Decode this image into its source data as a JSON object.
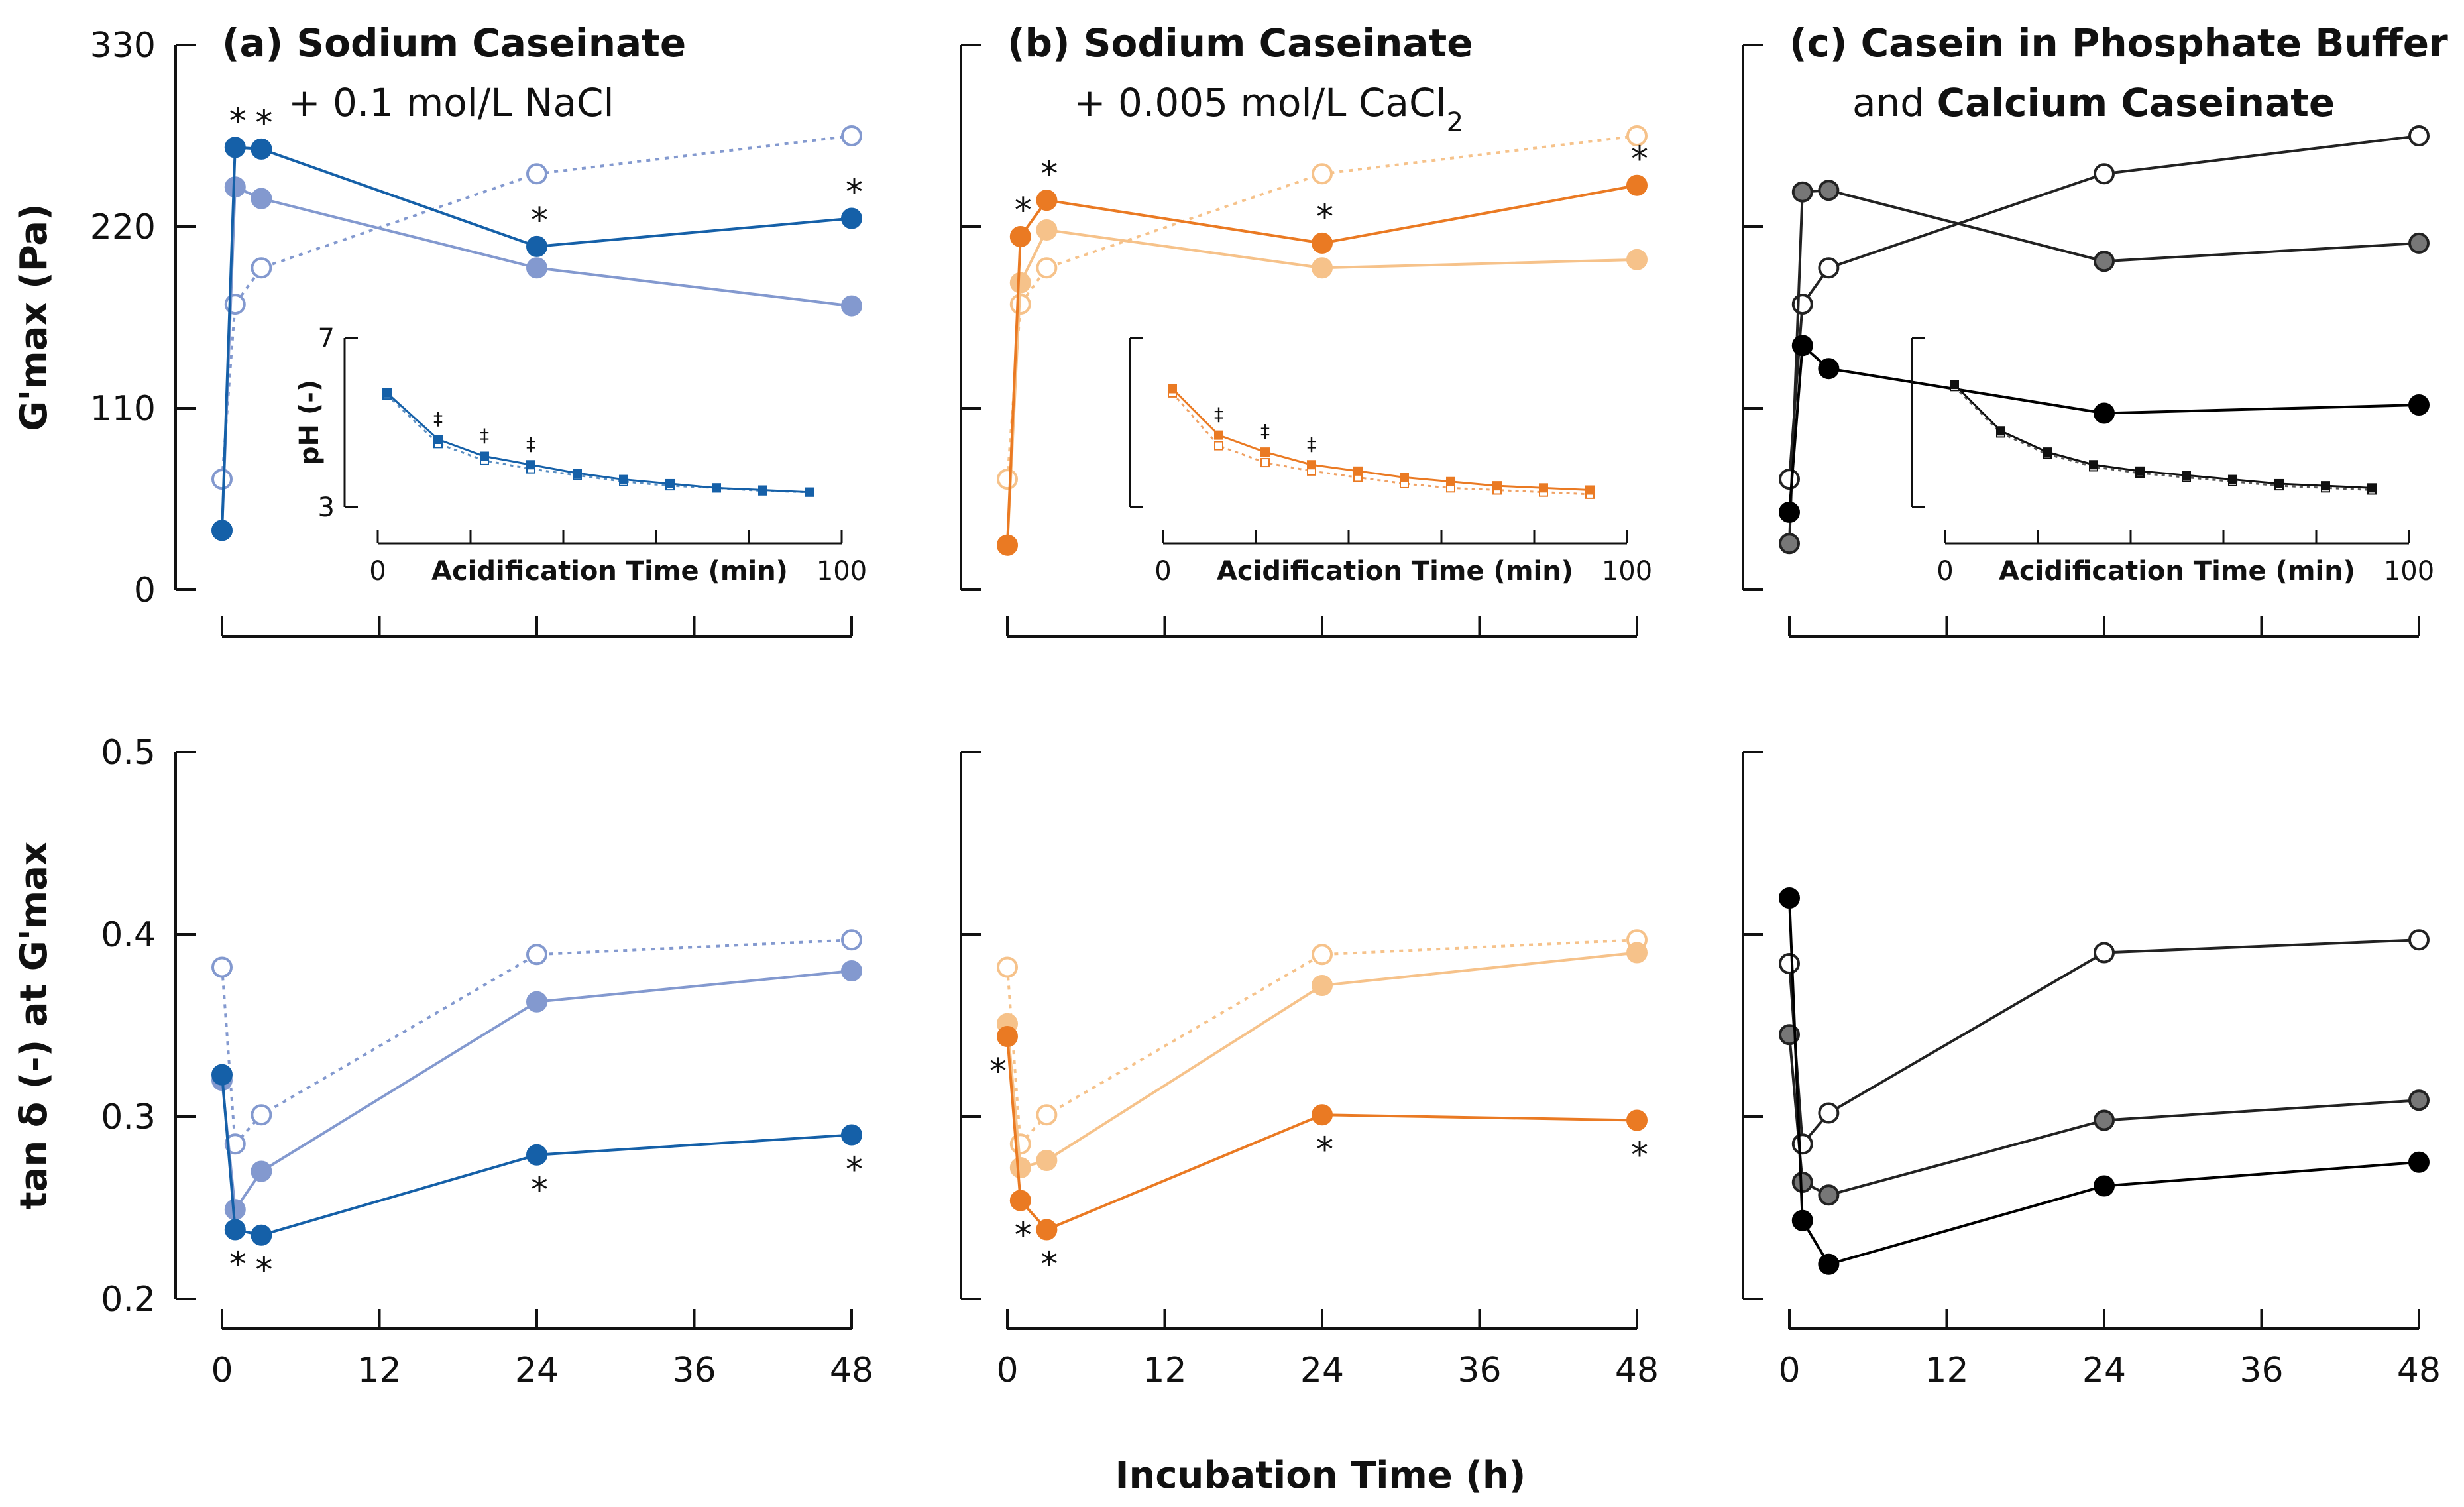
{
  "figure": {
    "x_axis_title": "Incubation Time (h)",
    "y_top_title": "G'max (Pa)",
    "y_bottom_title": "tan δ (-) at G'max"
  },
  "chart_data": [
    {
      "type": "line",
      "panel": "a",
      "row": "top",
      "title_bold": "(a) Sodium Caseinate",
      "subtitle": "+ 0.1 mol/L NaCl",
      "ylabel": "G'max (Pa)",
      "xlabel": "Incubation Time (h)",
      "xlim": [
        0,
        48
      ],
      "ylim": [
        0,
        330
      ],
      "xticks": [
        0,
        12,
        24,
        36,
        48
      ],
      "yticks": [
        0,
        110,
        220,
        330
      ],
      "series": [
        {
          "name": "dark filled",
          "color": "#1560a8",
          "fill": "#1560a8",
          "dash": false,
          "x": [
            0,
            1,
            3,
            24,
            48
          ],
          "y": [
            36,
            268,
            267,
            208,
            225
          ]
        },
        {
          "name": "light filled",
          "color": "#8399cf",
          "fill": "#8399cf",
          "dash": false,
          "x": [
            0,
            1,
            3,
            24,
            48
          ],
          "y": [
            36,
            244,
            237,
            195,
            172
          ]
        },
        {
          "name": "open (reference)",
          "color": "#8399cf",
          "fill": "#ffffff",
          "dash": true,
          "x": [
            0,
            1,
            3,
            24,
            48
          ],
          "y": [
            67,
            173,
            195,
            252,
            275
          ]
        }
      ],
      "annotations": [
        {
          "text": "*",
          "x": 1,
          "y": 268,
          "pos": "above"
        },
        {
          "text": "*",
          "x": 3,
          "y": 267,
          "pos": "above"
        },
        {
          "text": "*",
          "x": 24,
          "y": 208,
          "pos": "above"
        },
        {
          "text": "*",
          "x": 48,
          "y": 225,
          "pos": "above"
        }
      ],
      "inset": {
        "xlabel": "Acidification Time (min)",
        "ylabel": "pH (-)",
        "xlim": [
          0,
          100
        ],
        "ylim": [
          3,
          7
        ],
        "xtick_labels": [
          "0",
          "100"
        ],
        "ytick_labels": [
          "3",
          "7"
        ],
        "show_y_labels": true,
        "color": "#1560a8",
        "x": [
          2,
          13,
          23,
          33,
          43,
          53,
          63,
          73,
          83,
          93
        ],
        "y_filled": [
          5.7,
          4.6,
          4.2,
          4.0,
          3.8,
          3.65,
          3.55,
          3.45,
          3.4,
          3.35
        ],
        "y_open": [
          5.65,
          4.5,
          4.1,
          3.9,
          3.75,
          3.6,
          3.5,
          3.45,
          3.38,
          3.35
        ],
        "markers": [
          "‡",
          "‡",
          "‡"
        ]
      }
    },
    {
      "type": "line",
      "panel": "b",
      "row": "top",
      "title_bold": "(b) Sodium Caseinate",
      "subtitle": "+ 0.005 mol/L CaCl",
      "subtitle_sub": "2",
      "ylabel": "G'max (Pa)",
      "xlabel": "Incubation Time (h)",
      "xlim": [
        0,
        48
      ],
      "ylim": [
        0,
        330
      ],
      "xticks": [
        0,
        12,
        24,
        36,
        48
      ],
      "yticks": [
        0,
        110,
        220,
        330
      ],
      "series": [
        {
          "name": "dark filled",
          "color": "#ea7a23",
          "fill": "#ea7a23",
          "dash": false,
          "x": [
            0,
            1,
            3,
            24,
            48
          ],
          "y": [
            27,
            214,
            236,
            210,
            245
          ]
        },
        {
          "name": "light filled",
          "color": "#f6c28a",
          "fill": "#f6c28a",
          "dash": false,
          "x": [
            0,
            1,
            3,
            24,
            48
          ],
          "y": [
            27,
            186,
            218,
            195,
            200
          ]
        },
        {
          "name": "open (reference)",
          "color": "#f6c28a",
          "fill": "#ffffff",
          "dash": true,
          "x": [
            0,
            1,
            3,
            24,
            48
          ],
          "y": [
            67,
            173,
            195,
            252,
            275
          ]
        }
      ],
      "annotations": [
        {
          "text": "*",
          "x": 1,
          "y": 214,
          "pos": "above"
        },
        {
          "text": "*",
          "x": 3,
          "y": 236,
          "pos": "above"
        },
        {
          "text": "*",
          "x": 24,
          "y": 210,
          "pos": "above"
        },
        {
          "text": "*",
          "x": 48,
          "y": 245,
          "pos": "above"
        }
      ],
      "inset": {
        "xlabel": "Acidification Time (min)",
        "ylabel": "",
        "xlim": [
          0,
          100
        ],
        "ylim": [
          3,
          7
        ],
        "xtick_labels": [
          "0",
          "100"
        ],
        "ytick_labels": [],
        "show_y_labels": false,
        "color": "#ea7a23",
        "x": [
          2,
          12,
          22,
          32,
          42,
          52,
          62,
          72,
          82,
          92
        ],
        "y_filled": [
          5.8,
          4.7,
          4.3,
          4.0,
          3.85,
          3.7,
          3.6,
          3.5,
          3.45,
          3.4
        ],
        "y_open": [
          5.7,
          4.45,
          4.05,
          3.85,
          3.7,
          3.55,
          3.45,
          3.4,
          3.35,
          3.3
        ],
        "markers": [
          "‡",
          "‡",
          "‡"
        ]
      }
    },
    {
      "type": "line",
      "panel": "c",
      "row": "top",
      "title_bold": "(c) Casein in Phosphate Buffer",
      "subtitle_pre": "and ",
      "subtitle_bold": "Calcium Caseinate",
      "ylabel": "G'max (Pa)",
      "xlabel": "Incubation Time (h)",
      "xlim": [
        0,
        48
      ],
      "ylim": [
        0,
        330
      ],
      "xticks": [
        0,
        12,
        24,
        36,
        48
      ],
      "yticks": [
        0,
        110,
        220,
        330
      ],
      "series": [
        {
          "name": "black filled",
          "color": "#000000",
          "fill": "#000000",
          "dash": false,
          "x": [
            0,
            1,
            3,
            24,
            48
          ],
          "y": [
            47,
            148,
            134,
            107,
            112
          ]
        },
        {
          "name": "grey filled",
          "color": "#222222",
          "fill": "#777777",
          "dash": false,
          "x": [
            0,
            1,
            3,
            24,
            48
          ],
          "y": [
            28,
            241,
            242,
            199,
            210
          ]
        },
        {
          "name": "open",
          "color": "#222222",
          "fill": "#ffffff",
          "dash": false,
          "x": [
            0,
            1,
            3,
            24,
            48
          ],
          "y": [
            67,
            173,
            195,
            252,
            275
          ]
        }
      ],
      "annotations": [],
      "inset": {
        "xlabel": "Acidification Time (min)",
        "ylabel": "",
        "xlim": [
          0,
          100
        ],
        "ylim": [
          3,
          7
        ],
        "xtick_labels": [
          "0",
          "100"
        ],
        "ytick_labels": [],
        "show_y_labels": false,
        "color": "#111111",
        "x": [
          2,
          12,
          22,
          32,
          42,
          52,
          62,
          72,
          82,
          92
        ],
        "y_filled": [
          5.9,
          4.8,
          4.3,
          4.0,
          3.85,
          3.75,
          3.65,
          3.55,
          3.5,
          3.45
        ],
        "y_open": [
          5.85,
          4.75,
          4.25,
          3.95,
          3.8,
          3.7,
          3.6,
          3.5,
          3.45,
          3.4
        ],
        "markers": []
      }
    },
    {
      "type": "line",
      "panel": "a",
      "row": "bottom",
      "ylabel": "tan δ (-) at G'max",
      "xlabel": "Incubation Time (h)",
      "xlim": [
        0,
        48
      ],
      "ylim": [
        0.2,
        0.5
      ],
      "xticks": [
        0,
        12,
        24,
        36,
        48
      ],
      "yticks": [
        0.2,
        0.3,
        0.4,
        0.5
      ],
      "series": [
        {
          "name": "dark filled",
          "color": "#1560a8",
          "fill": "#1560a8",
          "dash": false,
          "x": [
            0,
            1,
            3,
            24,
            48
          ],
          "y": [
            0.323,
            0.238,
            0.235,
            0.279,
            0.29
          ]
        },
        {
          "name": "light filled",
          "color": "#8399cf",
          "fill": "#8399cf",
          "dash": false,
          "x": [
            0,
            1,
            3,
            24,
            48
          ],
          "y": [
            0.32,
            0.249,
            0.27,
            0.363,
            0.38
          ]
        },
        {
          "name": "open (reference)",
          "color": "#8399cf",
          "fill": "#ffffff",
          "dash": true,
          "x": [
            0,
            1,
            3,
            24,
            48
          ],
          "y": [
            0.382,
            0.285,
            0.301,
            0.389,
            0.397
          ]
        }
      ],
      "annotations": [
        {
          "text": "*",
          "x": 1,
          "y": 0.238,
          "pos": "below"
        },
        {
          "text": "*",
          "x": 3,
          "y": 0.235,
          "pos": "below"
        },
        {
          "text": "*",
          "x": 24,
          "y": 0.279,
          "pos": "below"
        },
        {
          "text": "*",
          "x": 48,
          "y": 0.29,
          "pos": "below"
        }
      ]
    },
    {
      "type": "line",
      "panel": "b",
      "row": "bottom",
      "ylabel": "tan δ (-) at G'max",
      "xlabel": "Incubation Time (h)",
      "xlim": [
        0,
        48
      ],
      "ylim": [
        0.2,
        0.5
      ],
      "xticks": [
        0,
        12,
        24,
        36,
        48
      ],
      "yticks": [
        0.2,
        0.3,
        0.4,
        0.5
      ],
      "series": [
        {
          "name": "dark filled",
          "color": "#ea7a23",
          "fill": "#ea7a23",
          "dash": false,
          "x": [
            0,
            1,
            3,
            24,
            48
          ],
          "y": [
            0.344,
            0.254,
            0.238,
            0.301,
            0.298
          ]
        },
        {
          "name": "light filled",
          "color": "#f6c28a",
          "fill": "#f6c28a",
          "dash": false,
          "x": [
            0,
            1,
            3,
            24,
            48
          ],
          "y": [
            0.351,
            0.272,
            0.276,
            0.372,
            0.39
          ]
        },
        {
          "name": "open (reference)",
          "color": "#f6c28a",
          "fill": "#ffffff",
          "dash": true,
          "x": [
            0,
            1,
            3,
            24,
            48
          ],
          "y": [
            0.382,
            0.285,
            0.301,
            0.389,
            0.397
          ]
        }
      ],
      "annotations": [
        {
          "text": "*",
          "x": 0,
          "y": 0.344,
          "pos": "below"
        },
        {
          "text": "*",
          "x": 1,
          "y": 0.254,
          "pos": "below"
        },
        {
          "text": "*",
          "x": 3,
          "y": 0.238,
          "pos": "below"
        },
        {
          "text": "*",
          "x": 24,
          "y": 0.301,
          "pos": "below"
        },
        {
          "text": "*",
          "x": 48,
          "y": 0.298,
          "pos": "below"
        }
      ]
    },
    {
      "type": "line",
      "panel": "c",
      "row": "bottom",
      "ylabel": "tan δ (-) at G'max",
      "xlabel": "Incubation Time (h)",
      "xlim": [
        0,
        48
      ],
      "ylim": [
        0.2,
        0.5
      ],
      "xticks": [
        0,
        12,
        24,
        36,
        48
      ],
      "yticks": [
        0.2,
        0.3,
        0.4,
        0.5
      ],
      "series": [
        {
          "name": "black filled",
          "color": "#000000",
          "fill": "#000000",
          "dash": false,
          "x": [
            0,
            1,
            3,
            24,
            48
          ],
          "y": [
            0.42,
            0.243,
            0.219,
            0.262,
            0.275
          ]
        },
        {
          "name": "grey filled",
          "color": "#222222",
          "fill": "#777777",
          "dash": false,
          "x": [
            0,
            1,
            3,
            24,
            48
          ],
          "y": [
            0.345,
            0.264,
            0.257,
            0.298,
            0.309
          ]
        },
        {
          "name": "open",
          "color": "#222222",
          "fill": "#ffffff",
          "dash": false,
          "x": [
            0,
            1,
            3,
            24,
            48
          ],
          "y": [
            0.384,
            0.285,
            0.302,
            0.39,
            0.397
          ]
        }
      ],
      "annotations": []
    }
  ]
}
